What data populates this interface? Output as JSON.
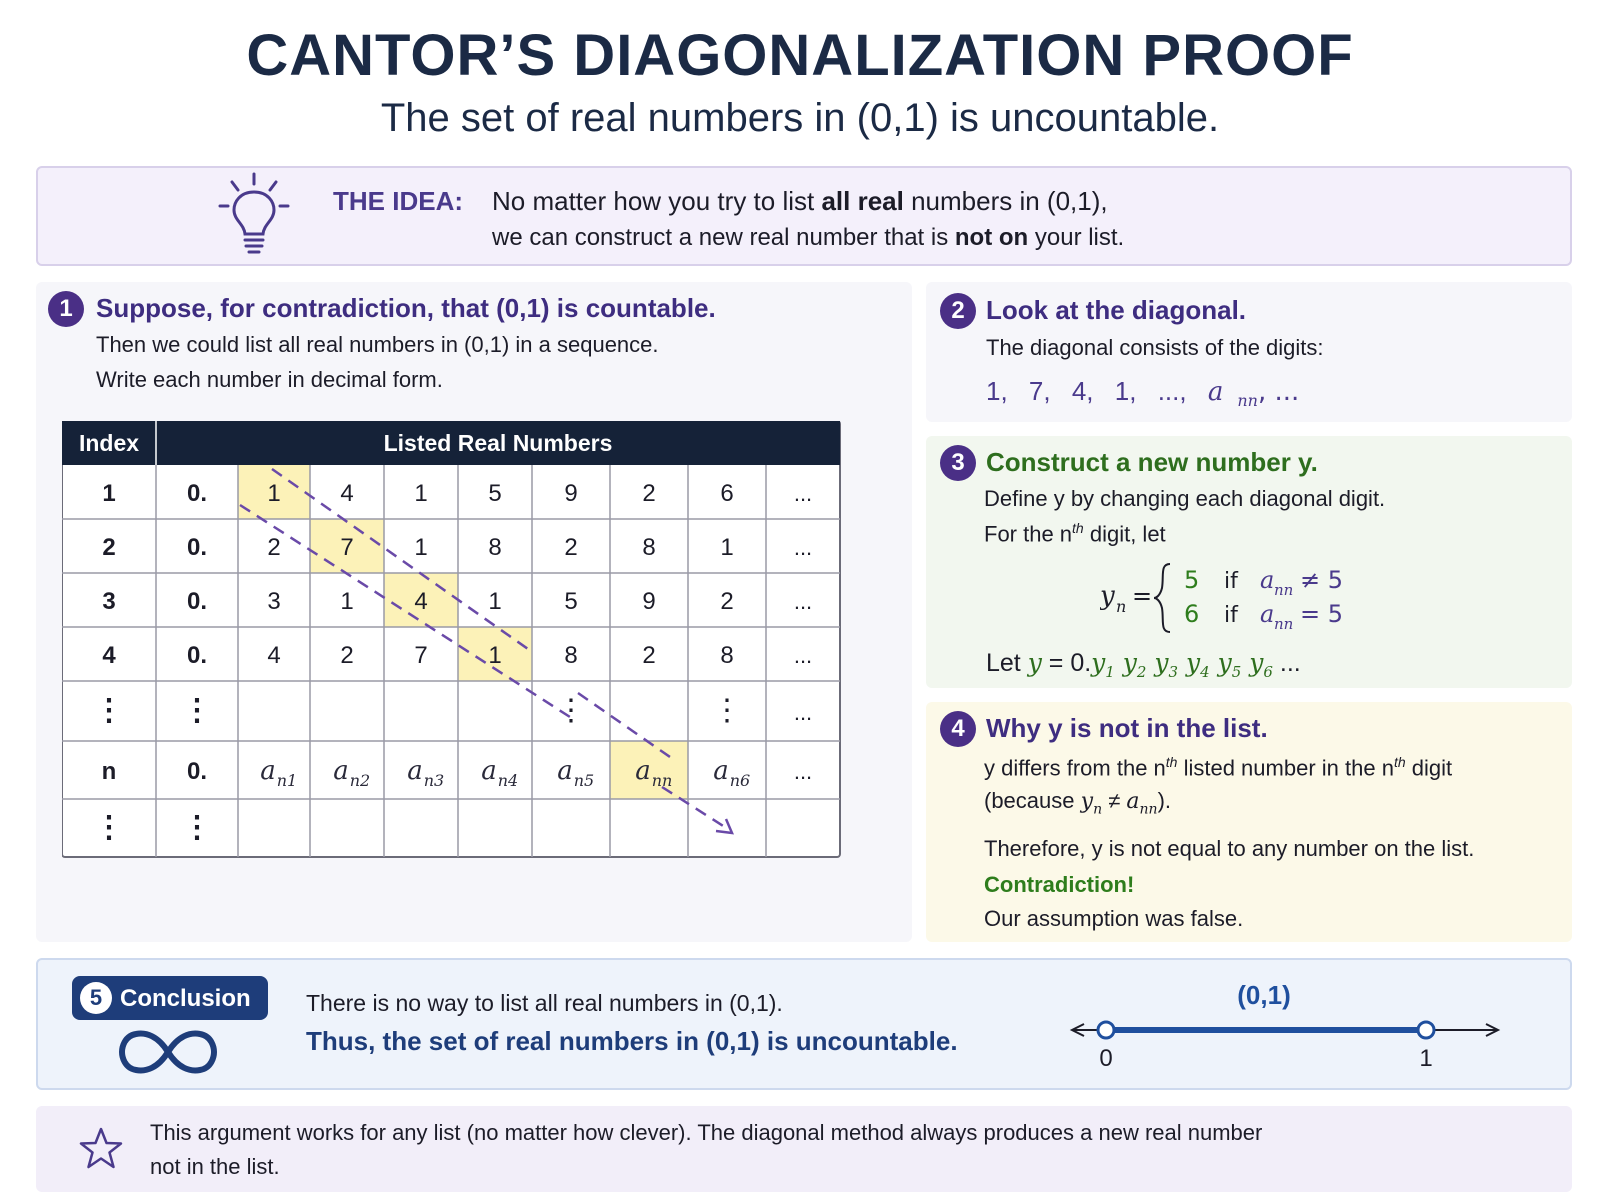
{
  "header": {
    "title": "CANTOR’S DIAGONALIZATION PROOF",
    "subtitle": "The set of real numbers in (0,1) is uncountable."
  },
  "idea": {
    "icon": "lightbulb-icon",
    "label": "THE IDEA:",
    "line1_a": "No matter how you try to list ",
    "line1_b": "all real",
    "line1_c": " numbers in (0,1),",
    "line2_a": "we can construct a new real number that is ",
    "line2_b": "not on",
    "line2_c": " your list."
  },
  "step1": {
    "number": "1",
    "title": "Suppose, for contradiction, that (0,1) is countable.",
    "line1": "Then we could list all real numbers in (0,1) in a sequence.",
    "line2": "Write each number in decimal form."
  },
  "table": {
    "header_index": "Index",
    "header_numbers": "Listed Real Numbers",
    "rows": [
      {
        "index": "1",
        "prefix": "0.",
        "digits": [
          "1",
          "4",
          "1",
          "5",
          "9",
          "2",
          "6"
        ],
        "ellipsis": "..."
      },
      {
        "index": "2",
        "prefix": "0.",
        "digits": [
          "2",
          "7",
          "1",
          "8",
          "2",
          "8",
          "1"
        ],
        "ellipsis": "..."
      },
      {
        "index": "3",
        "prefix": "0.",
        "digits": [
          "3",
          "1",
          "4",
          "1",
          "5",
          "9",
          "2"
        ],
        "ellipsis": "..."
      },
      {
        "index": "4",
        "prefix": "0.",
        "digits": [
          "4",
          "2",
          "7",
          "1",
          "8",
          "2",
          "8"
        ],
        "ellipsis": "..."
      },
      {
        "index": "⋮",
        "prefix": "⋮",
        "digits": [
          "",
          "",
          "",
          "",
          "⋮",
          "",
          "⋮"
        ],
        "ellipsis": "..."
      },
      {
        "index": "n",
        "prefix": "0.",
        "digits": [
          "a",
          "a",
          "a",
          "a",
          "a",
          "a",
          "a"
        ],
        "subs": [
          "n1",
          "n2",
          "n3",
          "n4",
          "n5",
          "nn",
          "n6"
        ],
        "ellipsis": "..."
      },
      {
        "index": "⋮",
        "prefix": "⋮",
        "digits": [
          "",
          "",
          "",
          "",
          "",
          "",
          ""
        ],
        "ellipsis": ""
      }
    ],
    "highlight_color": "#fcf2b8",
    "arrow_color": "#6a4aa8"
  },
  "step2": {
    "number": "2",
    "title": "Look at the diagonal.",
    "line1": "The diagonal consists of the digits:",
    "digits": [
      "1,",
      "7,",
      "4,",
      "1,",
      "...,"
    ],
    "a": "a",
    "sub": "nn",
    "trail": ", ..."
  },
  "step3": {
    "number": "3",
    "title": "Construct a new number y.",
    "line1": "Define y by changing each diagonal digit.",
    "line2_a": "For the n",
    "line2_sup": "th",
    "line2_b": " digit, let",
    "formula": {
      "lhs": "y",
      "lhs_sub": "n",
      "case1_val": "5",
      "case1_cond": "if",
      "case1_rel": "≠ 5",
      "case2_val": "6",
      "case2_cond": "if",
      "case2_rel": "= 5",
      "a": "a",
      "sub": "nn"
    },
    "let_prefix": "Let ",
    "let_y": "y",
    "let_eq": " = 0.",
    "let_terms": [
      "1",
      "2",
      "3",
      "4",
      "5",
      "6"
    ],
    "let_trail": " ..."
  },
  "step4": {
    "number": "4",
    "title": "Why y is not in the list.",
    "line1_a": "y differs from the n",
    "line1_sup1": "th",
    "line1_b": " listed number in the n",
    "line1_sup2": "th",
    "line1_c": " digit",
    "line2_a": "(because ",
    "line2_y": "y",
    "line2_sub": "n",
    "line2_rel": " ≠ ",
    "line2_a2": "a",
    "line2_sub2": "nn",
    "line2_end": ").",
    "line3": "Therefore, y is not equal to any number on the list.",
    "contradiction": "Contradiction!",
    "line4": "Our assumption was false."
  },
  "conclusion": {
    "number": "5",
    "label": "Conclusion",
    "icon": "infinity-icon",
    "line1": "There is no way to list all real numbers in (0,1).",
    "line2": "Thus, the set of real numbers in (0,1) is uncountable.",
    "interval_label": "(0,1)",
    "endpoint_left": "0",
    "endpoint_right": "1",
    "line_color": "#1f4f9e"
  },
  "footer": {
    "icon": "star-icon",
    "line1": "This argument works for any list (no matter how clever). The diagonal method always produces a new real number",
    "line2": "not in the list."
  }
}
